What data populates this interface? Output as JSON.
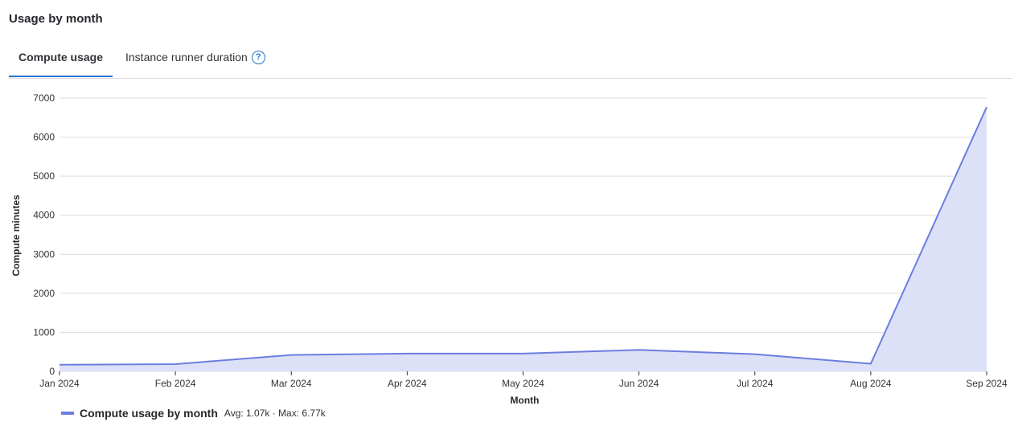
{
  "header": {
    "title": "Usage by month"
  },
  "tabs": [
    {
      "label": "Compute usage",
      "active": true
    },
    {
      "label": "Instance runner duration",
      "active": false,
      "icon": "help-icon"
    }
  ],
  "help_icon_glyph": "?",
  "colors": {
    "line": "#6b7ee0",
    "area": "#dde1f7",
    "grid": "#dcdcde",
    "tab_active": "#1f75cb"
  },
  "chart_data": {
    "type": "area",
    "x": [
      "Jan 2024",
      "Feb 2024",
      "Mar 2024",
      "Apr 2024",
      "May 2024",
      "Jun 2024",
      "Jul 2024",
      "Aug 2024",
      "Sep 2024"
    ],
    "series": [
      {
        "name": "Compute usage by month",
        "values": [
          170,
          185,
          420,
          455,
          455,
          550,
          440,
          195,
          6770
        ]
      }
    ],
    "xlabel": "Month",
    "ylabel": "Compute minutes",
    "ylim": [
      0,
      7000
    ],
    "yticks": [
      0,
      1000,
      2000,
      3000,
      4000,
      5000,
      6000,
      7000
    ],
    "grid": true,
    "legend": {
      "position": "bottom-left",
      "label": "Compute usage by month",
      "stats": "Avg: 1.07k · Max: 6.77k"
    }
  }
}
